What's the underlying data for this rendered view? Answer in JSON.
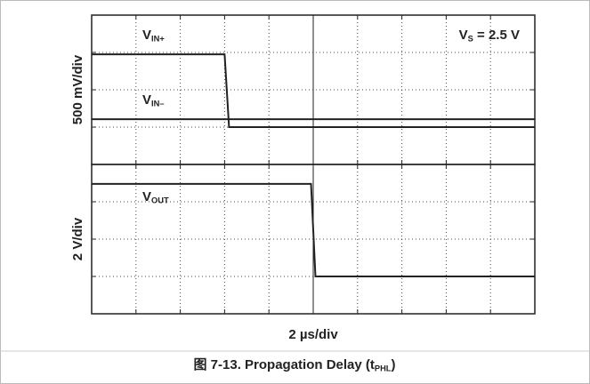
{
  "chart_data": [
    {
      "type": "line",
      "ylabel": "500 mV/div",
      "annotation": {
        "text": "V",
        "sub": "S",
        "rest": " = 2.5 V"
      },
      "xlim": [
        0,
        10
      ],
      "xticks": [
        0,
        1,
        2,
        3,
        4,
        5,
        6,
        7,
        8,
        9,
        10
      ],
      "ylim": [
        0,
        4
      ],
      "yticks": [
        0,
        1,
        2,
        3,
        4
      ],
      "grid": true,
      "series": [
        {
          "name": "V",
          "name_sub": "IN+",
          "color": "#222222",
          "x": [
            0,
            3.0,
            3.1,
            10
          ],
          "values": [
            2.95,
            2.95,
            1.0,
            1.0
          ]
        },
        {
          "name": "V",
          "name_sub": "IN–",
          "color": "#222222",
          "x": [
            0,
            10
          ],
          "values": [
            1.21,
            1.21
          ]
        }
      ]
    },
    {
      "type": "line",
      "ylabel": "2 V/div",
      "xlabel": "2 µs/div",
      "xlim": [
        0,
        10
      ],
      "xticks": [
        0,
        1,
        2,
        3,
        4,
        5,
        6,
        7,
        8,
        9,
        10
      ],
      "ylim": [
        0,
        4
      ],
      "yticks": [
        0,
        1,
        2,
        3,
        4
      ],
      "grid": true,
      "series": [
        {
          "name": "V",
          "name_sub": "OUT",
          "color": "#222222",
          "x": [
            0,
            4.95,
            5.05,
            10
          ],
          "values": [
            3.48,
            3.48,
            1.0,
            1.0
          ]
        }
      ]
    }
  ],
  "caption": {
    "text": "图 7-13. Propagation Delay (t",
    "sub": "PHL",
    "rest": ")"
  }
}
